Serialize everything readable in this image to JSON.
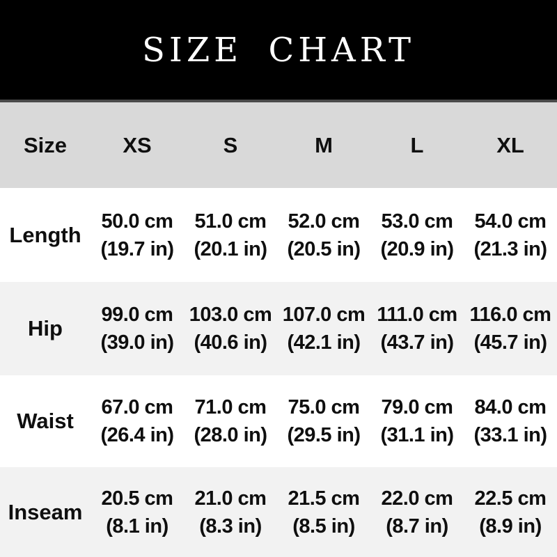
{
  "banner": {
    "title": "SIZE CHART"
  },
  "colors": {
    "banner_bg": "#000000",
    "banner_text": "#ffffff",
    "header_row_bg": "#d9d9d9",
    "header_border": "#4a4a4a",
    "row_bg": "#ffffff",
    "row_alt_bg": "#f2f2f2",
    "text": "#0f0f0f"
  },
  "chart_data": {
    "type": "table",
    "title": "SIZE CHART",
    "columns": [
      "Size",
      "XS",
      "S",
      "M",
      "L",
      "XL"
    ],
    "rows": [
      {
        "label": "Length",
        "cm": [
          "50.0 cm",
          "51.0 cm",
          "52.0 cm",
          "53.0 cm",
          "54.0 cm"
        ],
        "in": [
          "(19.7 in)",
          "(20.1 in)",
          "(20.5 in)",
          "(20.9 in)",
          "(21.3 in)"
        ]
      },
      {
        "label": "Hip",
        "cm": [
          "99.0 cm",
          "103.0 cm",
          "107.0 cm",
          "111.0 cm",
          "116.0 cm"
        ],
        "in": [
          "(39.0 in)",
          "(40.6 in)",
          "(42.1 in)",
          "(43.7 in)",
          "(45.7 in)"
        ]
      },
      {
        "label": "Waist",
        "cm": [
          "67.0 cm",
          "71.0 cm",
          "75.0 cm",
          "79.0 cm",
          "84.0 cm"
        ],
        "in": [
          "(26.4 in)",
          "(28.0 in)",
          "(29.5 in)",
          "(31.1 in)",
          "(33.1 in)"
        ]
      },
      {
        "label": "Inseam",
        "cm": [
          "20.5 cm",
          "21.0 cm",
          "21.5 cm",
          "22.0 cm",
          "22.5 cm"
        ],
        "in": [
          "(8.1 in)",
          "(8.3 in)",
          "(8.5 in)",
          "(8.7 in)",
          "(8.9 in)"
        ]
      }
    ]
  }
}
